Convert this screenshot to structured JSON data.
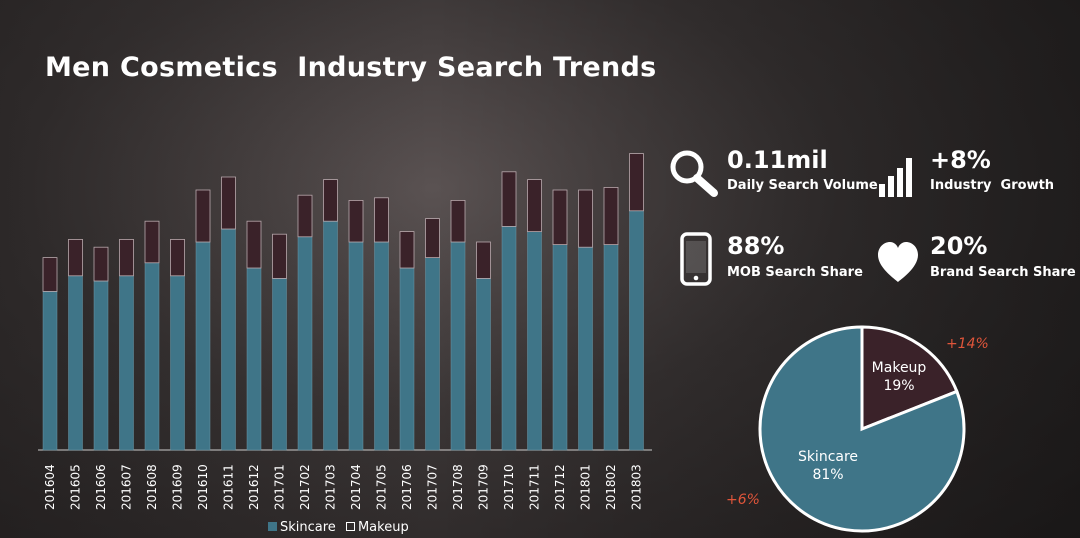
{
  "title": "Men Cosmetics  Industry Search Trends",
  "colors": {
    "skincare": "#3f7588",
    "makeup": "#3a2229",
    "growth": "#e0553a"
  },
  "stats": [
    {
      "icon": "search-icon",
      "value": "0.11mil",
      "label": "Daily Search Volume"
    },
    {
      "icon": "bar-signal-icon",
      "value": "+8%",
      "label": "Industry  Growth"
    },
    {
      "icon": "mobile-phone-icon",
      "value": "88%",
      "label": "MOB Search Share"
    },
    {
      "icon": "heart-icon",
      "value": "20%",
      "label": "Brand Search Share"
    }
  ],
  "legend": {
    "skincare": "Skincare",
    "makeup": "Makeup"
  },
  "pie_growth": {
    "makeup": "+14%",
    "skincare": "+6%"
  },
  "chart_data": [
    {
      "type": "bar",
      "stacked": true,
      "categories": [
        "201604",
        "201605",
        "201606",
        "201607",
        "201608",
        "201609",
        "201610",
        "201611",
        "201612",
        "201701",
        "201702",
        "201703",
        "201704",
        "201705",
        "201706",
        "201707",
        "201708",
        "201709",
        "201710",
        "201711",
        "201712",
        "201801",
        "201802",
        "201803"
      ],
      "series": [
        {
          "name": "Skincare",
          "values": [
            61,
            67,
            65,
            67,
            72,
            67,
            80,
            85,
            70,
            66,
            82,
            88,
            80,
            80,
            70,
            74,
            80,
            66,
            86,
            84,
            79,
            78,
            79,
            92
          ]
        },
        {
          "name": "Makeup",
          "values": [
            13,
            14,
            13,
            14,
            16,
            14,
            20,
            20,
            18,
            17,
            16,
            16,
            16,
            17,
            14,
            15,
            16,
            14,
            21,
            20,
            21,
            22,
            22,
            22
          ]
        }
      ],
      "legend_position": "bottom",
      "grid": false
    },
    {
      "type": "pie",
      "labels": [
        "Makeup",
        "Skincare"
      ],
      "values": [
        19,
        81
      ],
      "value_labels": [
        "19%",
        "81%"
      ]
    }
  ]
}
